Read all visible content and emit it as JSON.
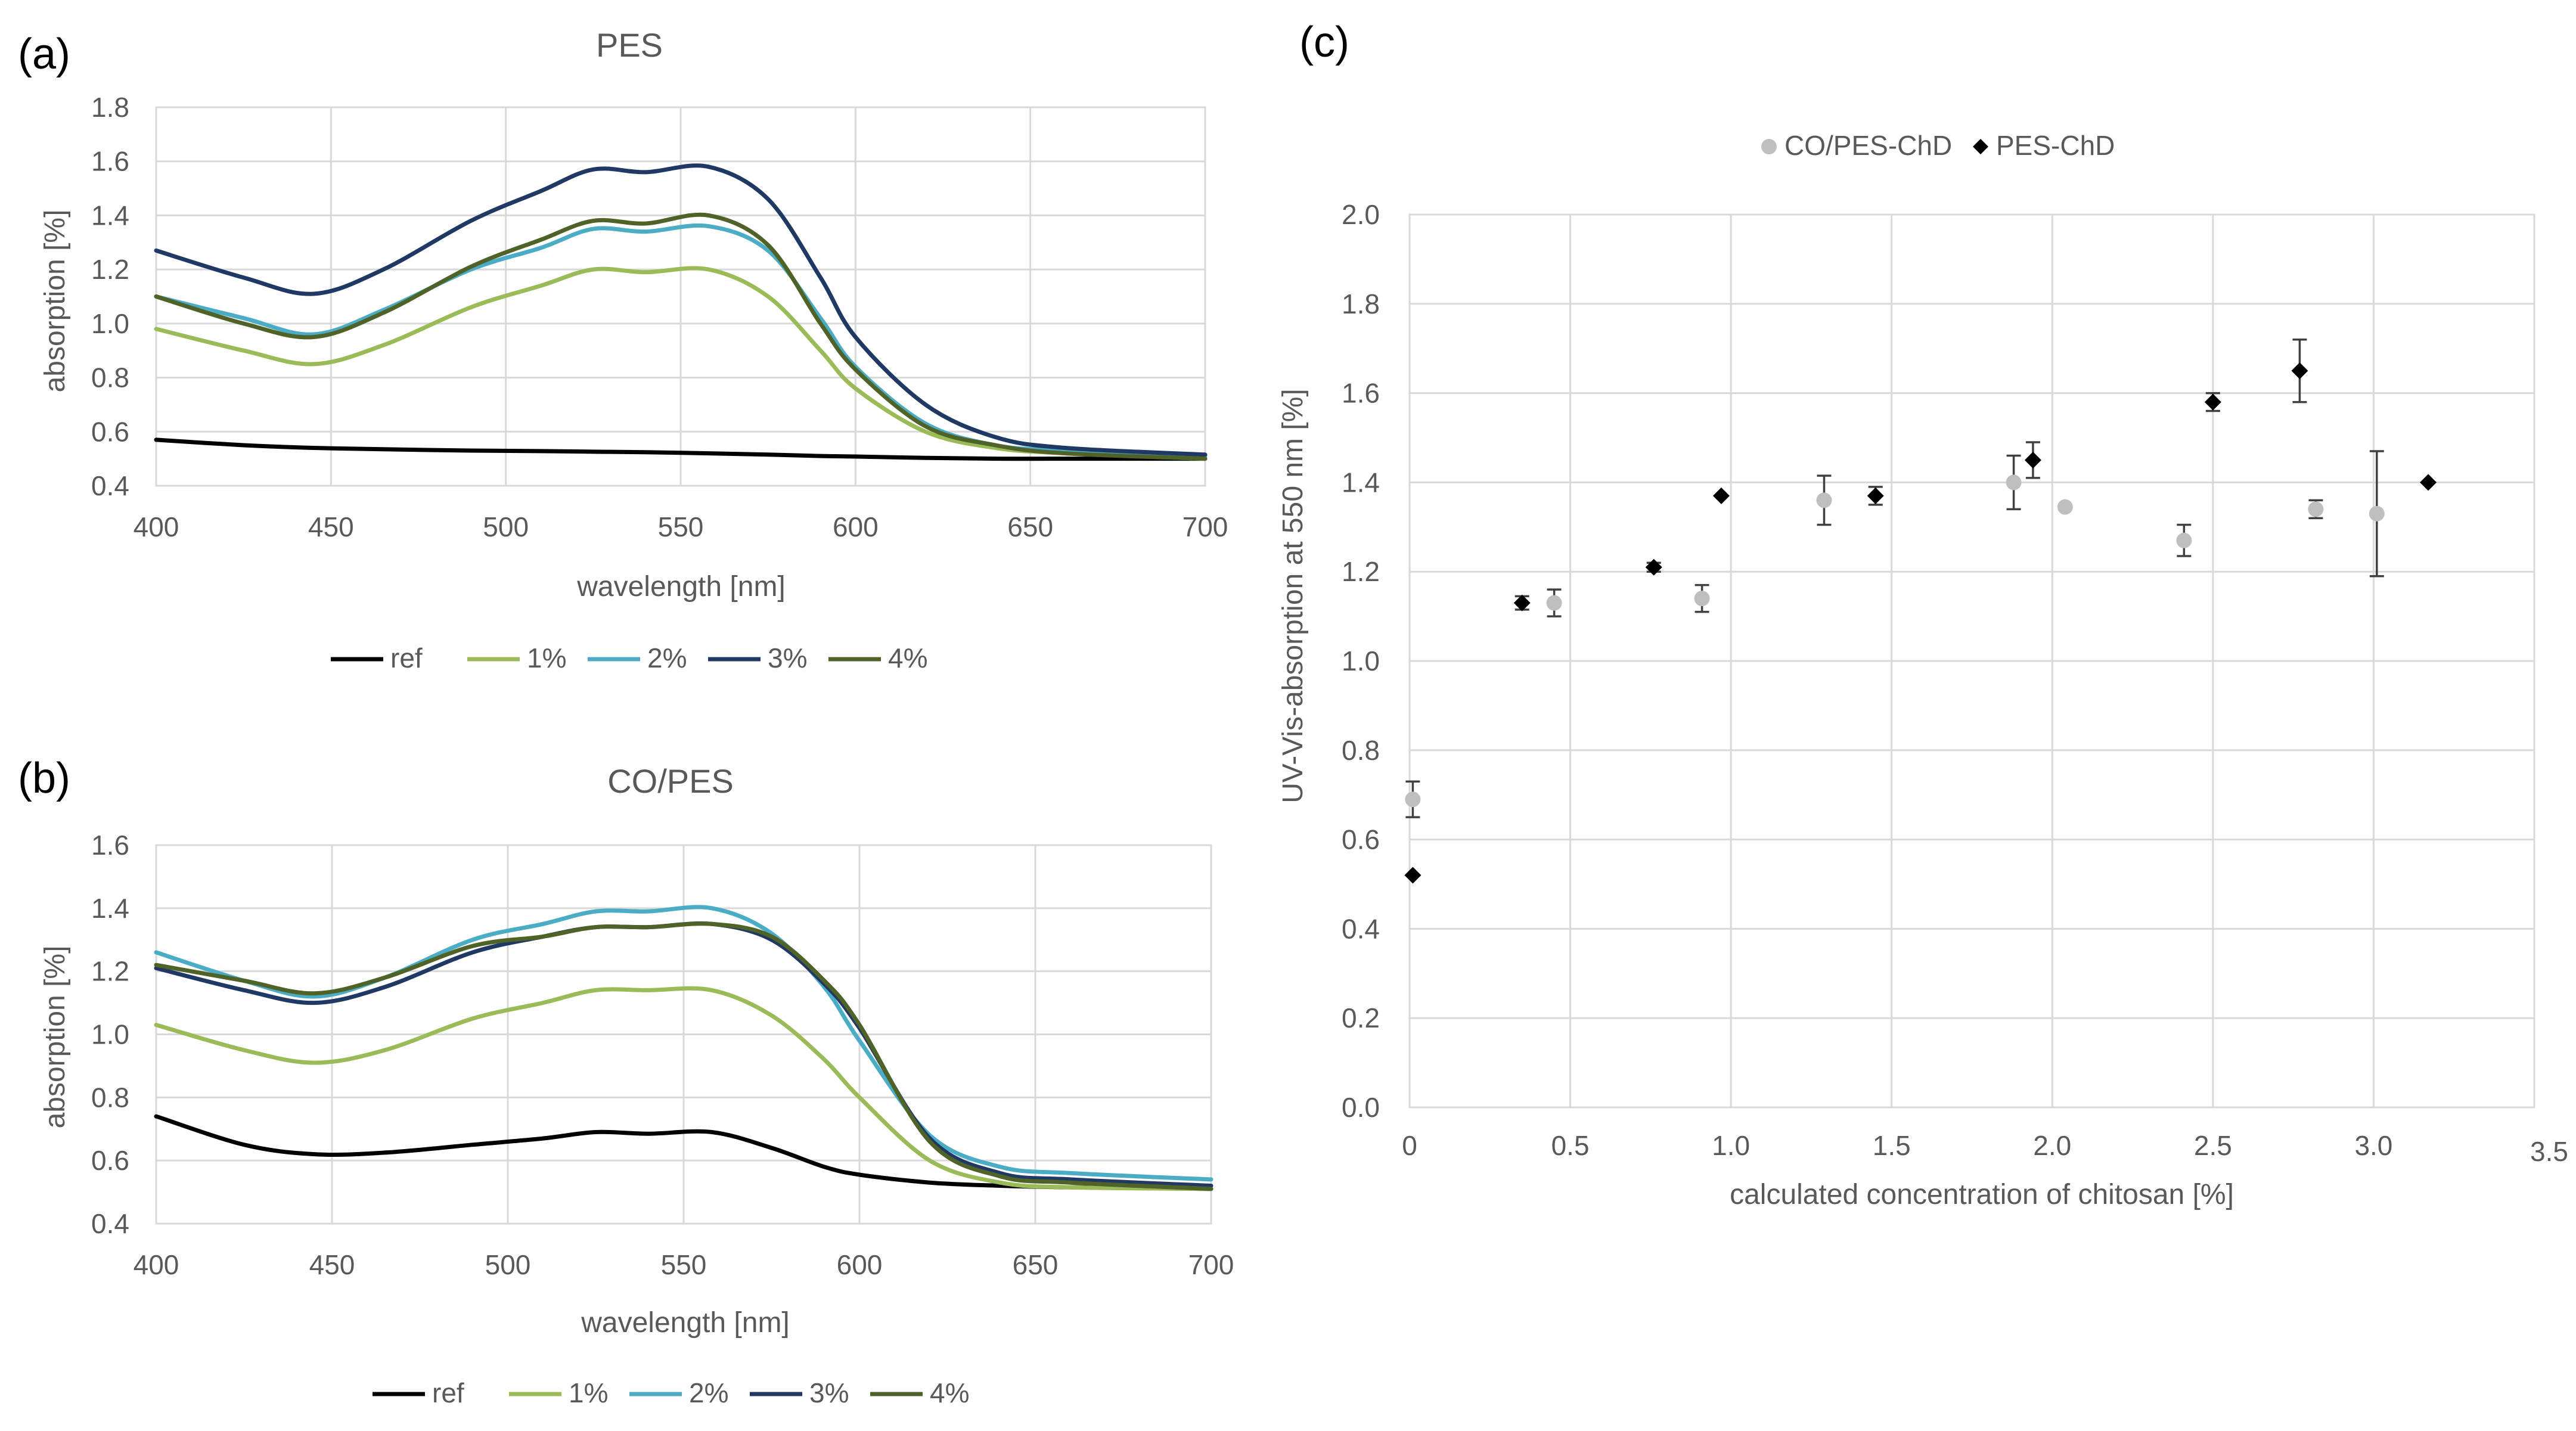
{
  "chart_data": [
    {
      "id": "a",
      "panel_label": "(a)",
      "type": "line",
      "title": "PES",
      "xlabel": "wavelength [nm]",
      "ylabel": "absorption [%]",
      "xlim": [
        400,
        700
      ],
      "ylim": [
        0.4,
        1.8
      ],
      "xticks": [
        400,
        450,
        500,
        550,
        600,
        650,
        700
      ],
      "yticks": [
        0.4,
        0.6,
        0.8,
        1.0,
        1.2,
        1.4,
        1.6,
        1.8
      ],
      "xtick_labels": [
        "400",
        "450",
        "500",
        "550",
        "600",
        "650",
        "700"
      ],
      "ytick_labels": [
        "0.4",
        "0.6",
        "0.8",
        "1.0",
        "1.2",
        "1.4",
        "1.6",
        "1.8"
      ],
      "legend_position": "bottom",
      "x": [
        400,
        425,
        445,
        465,
        490,
        510,
        525,
        540,
        558,
        575,
        590,
        600,
        620,
        640,
        660,
        700
      ],
      "series": [
        {
          "name": "ref",
          "label": "ref",
          "color": "#000000",
          "values": [
            0.57,
            0.55,
            0.54,
            0.535,
            0.53,
            0.528,
            0.526,
            0.524,
            0.52,
            0.515,
            0.51,
            0.508,
            0.503,
            0.5,
            0.5,
            0.5
          ]
        },
        {
          "name": "1%",
          "label": "1%",
          "color": "#9BBB59",
          "values": [
            0.98,
            0.9,
            0.85,
            0.92,
            1.06,
            1.14,
            1.2,
            1.19,
            1.2,
            1.1,
            0.9,
            0.76,
            0.6,
            0.54,
            0.52,
            0.5
          ]
        },
        {
          "name": "2%",
          "label": "2%",
          "color": "#4BACC6",
          "values": [
            1.1,
            1.02,
            0.96,
            1.05,
            1.2,
            1.28,
            1.35,
            1.34,
            1.36,
            1.27,
            1.02,
            0.84,
            0.63,
            0.55,
            0.53,
            0.51
          ]
        },
        {
          "name": "3%",
          "label": "3%",
          "color": "#1F3864",
          "values": [
            1.27,
            1.17,
            1.11,
            1.2,
            1.38,
            1.49,
            1.57,
            1.56,
            1.58,
            1.46,
            1.17,
            0.95,
            0.7,
            0.58,
            0.54,
            0.515
          ]
        },
        {
          "name": "4%",
          "label": "4%",
          "color": "#4F6228",
          "values": [
            1.1,
            1.0,
            0.95,
            1.04,
            1.21,
            1.31,
            1.38,
            1.37,
            1.4,
            1.29,
            1.0,
            0.83,
            0.62,
            0.55,
            0.52,
            0.5
          ]
        }
      ]
    },
    {
      "id": "b",
      "panel_label": "(b)",
      "type": "line",
      "title": "CO/PES",
      "xlabel": "wavelength [nm]",
      "ylabel": "absorption [%]",
      "xlim": [
        400,
        700
      ],
      "ylim": [
        0.4,
        1.6
      ],
      "xticks": [
        400,
        450,
        500,
        550,
        600,
        650,
        700
      ],
      "yticks": [
        0.4,
        0.6,
        0.8,
        1.0,
        1.2,
        1.4,
        1.6
      ],
      "xtick_labels": [
        "400",
        "450",
        "500",
        "550",
        "600",
        "650",
        "700"
      ],
      "ytick_labels": [
        "0.4",
        "0.6",
        "0.8",
        "1.0",
        "1.2",
        "1.4",
        "1.6"
      ],
      "legend_position": "bottom",
      "x": [
        400,
        425,
        445,
        465,
        490,
        510,
        525,
        540,
        558,
        575,
        590,
        600,
        620,
        640,
        660,
        700
      ],
      "series": [
        {
          "name": "ref",
          "label": "ref",
          "color": "#000000",
          "values": [
            0.74,
            0.65,
            0.62,
            0.625,
            0.65,
            0.67,
            0.69,
            0.685,
            0.69,
            0.64,
            0.58,
            0.555,
            0.53,
            0.52,
            0.515,
            0.51
          ]
        },
        {
          "name": "1%",
          "label": "1%",
          "color": "#9BBB59",
          "values": [
            1.03,
            0.95,
            0.91,
            0.95,
            1.05,
            1.1,
            1.14,
            1.14,
            1.14,
            1.06,
            0.92,
            0.8,
            0.6,
            0.53,
            0.515,
            0.51
          ]
        },
        {
          "name": "2%",
          "label": "2%",
          "color": "#4BACC6",
          "values": [
            1.26,
            1.17,
            1.12,
            1.18,
            1.3,
            1.35,
            1.39,
            1.39,
            1.4,
            1.32,
            1.15,
            0.98,
            0.68,
            0.58,
            0.56,
            0.54
          ]
        },
        {
          "name": "3%",
          "label": "3%",
          "color": "#1F3864",
          "values": [
            1.21,
            1.14,
            1.1,
            1.15,
            1.26,
            1.31,
            1.34,
            1.34,
            1.35,
            1.3,
            1.16,
            1.02,
            0.67,
            0.56,
            0.54,
            0.52
          ]
        },
        {
          "name": "4%",
          "label": "4%",
          "color": "#4F6228",
          "values": [
            1.22,
            1.17,
            1.13,
            1.18,
            1.28,
            1.31,
            1.34,
            1.34,
            1.35,
            1.31,
            1.17,
            1.03,
            0.66,
            0.55,
            0.53,
            0.51
          ]
        }
      ]
    },
    {
      "id": "c",
      "panel_label": "(c)",
      "type": "scatter",
      "title": "",
      "xlabel": "calculated concentration of chitosan [%]",
      "ylabel": "UV-Vis-absorption at 550 nm [%]",
      "xlim": [
        0,
        3.5
      ],
      "ylim": [
        0,
        2.0
      ],
      "xticks": [
        0,
        0.5,
        1.0,
        1.5,
        2.0,
        2.5,
        3.0,
        3.5
      ],
      "yticks": [
        0,
        0.2,
        0.4,
        0.6,
        0.8,
        1.0,
        1.2,
        1.4,
        1.6,
        1.8,
        2.0
      ],
      "xtick_labels": [
        "0",
        "0.5",
        "1.0",
        "1.5",
        "2.0",
        "2.5",
        "3.0",
        "3.5"
      ],
      "ytick_labels": [
        "0.0",
        "0.2",
        "0.4",
        "0.6",
        "0.8",
        "1.0",
        "1.2",
        "1.4",
        "1.6",
        "1.8",
        "2.0"
      ],
      "grid": true,
      "legend_position": "top",
      "series": [
        {
          "name": "CO/PES-ChD",
          "label": "CO/PES-ChD",
          "color": "#BFBFBF",
          "marker": "circle",
          "points": [
            {
              "x": 0.01,
              "y": 0.69,
              "err": 0.04
            },
            {
              "x": 0.45,
              "y": 1.13,
              "err": 0.03
            },
            {
              "x": 0.91,
              "y": 1.14,
              "err": 0.03
            },
            {
              "x": 1.29,
              "y": 1.36,
              "err": 0.055
            },
            {
              "x": 1.88,
              "y": 1.4,
              "err": 0.06
            },
            {
              "x": 2.04,
              "y": 1.345,
              "err": 0
            },
            {
              "x": 2.41,
              "y": 1.27,
              "err": 0.035
            },
            {
              "x": 2.82,
              "y": 1.34,
              "err": 0.02
            },
            {
              "x": 3.01,
              "y": 1.33,
              "err": 0.14
            }
          ]
        },
        {
          "name": "PES-ChD",
          "label": "PES-ChD",
          "color": "#000000",
          "marker": "diamond",
          "points": [
            {
              "x": 0.01,
              "y": 0.52,
              "err": 0
            },
            {
              "x": 0.35,
              "y": 1.13,
              "err": 0.015
            },
            {
              "x": 0.76,
              "y": 1.21,
              "err": 0.01
            },
            {
              "x": 0.97,
              "y": 1.37,
              "err": 0
            },
            {
              "x": 1.45,
              "y": 1.37,
              "err": 0.02
            },
            {
              "x": 1.94,
              "y": 1.45,
              "err": 0.04
            },
            {
              "x": 2.5,
              "y": 1.58,
              "err": 0.02
            },
            {
              "x": 2.77,
              "y": 1.65,
              "err": 0.07
            },
            {
              "x": 3.17,
              "y": 1.4,
              "err": 0
            }
          ]
        }
      ]
    }
  ]
}
